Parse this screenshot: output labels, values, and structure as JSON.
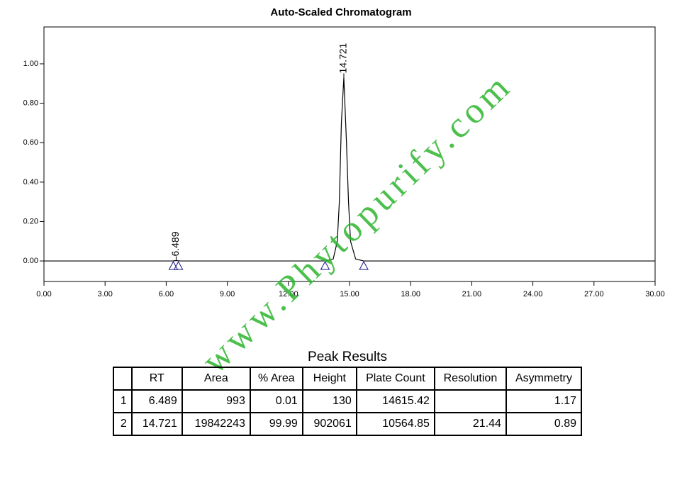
{
  "chart_data": {
    "type": "line",
    "title": "Auto-Scaled Chromatogram",
    "x": [
      0,
      6.3,
      6.489,
      6.7,
      13.8,
      14.2,
      14.4,
      14.5,
      14.6,
      14.721,
      14.85,
      14.95,
      15.05,
      15.3,
      15.7,
      30
    ],
    "series": [
      {
        "color": "#000000",
        "values": [
          0,
          0,
          0.002,
          0,
          0,
          0.01,
          0.1,
          0.3,
          0.7,
          0.93,
          0.6,
          0.3,
          0.1,
          0.01,
          0,
          0
        ]
      }
    ],
    "xlim": [
      0,
      30
    ],
    "ylim": [
      -0.104,
      1.187
    ],
    "xticks": [
      {
        "value": 0,
        "label": "0.00"
      },
      {
        "value": 3,
        "label": "3.00"
      },
      {
        "value": 6,
        "label": "6.00"
      },
      {
        "value": 9,
        "label": "9.00"
      },
      {
        "value": 12,
        "label": "12.00"
      },
      {
        "value": 15,
        "label": "15.00"
      },
      {
        "value": 18,
        "label": "18.00"
      },
      {
        "value": 21,
        "label": "21.00"
      },
      {
        "value": 24,
        "label": "24.00"
      },
      {
        "value": 27,
        "label": "27.00"
      },
      {
        "value": 30,
        "label": "30.00"
      }
    ],
    "yticks": [
      {
        "value": 0,
        "label": "0.00"
      },
      {
        "value": 0.2,
        "label": "0.20"
      },
      {
        "value": 0.4,
        "label": "0.40"
      },
      {
        "value": 0.6,
        "label": "0.60"
      },
      {
        "value": 0.8,
        "label": "0.80"
      },
      {
        "value": 1,
        "label": "1.00"
      }
    ],
    "annotations": [
      {
        "x": 6.489,
        "y": 0.002,
        "text": "6.489"
      },
      {
        "x": 14.721,
        "y": 0.93,
        "text": "14.721"
      }
    ],
    "peak_markers": {
      "color": "#1a1a8c",
      "x": [
        6.35,
        6.6,
        13.8,
        15.7
      ],
      "y": [
        0,
        0,
        0,
        0
      ]
    },
    "watermark": "www.Phytopurify.com"
  },
  "table": {
    "title": "Peak Results",
    "columns": [
      null,
      "RT",
      "Area",
      "% Area",
      "Height",
      "Plate Count",
      "Resolution",
      "Asymmetry"
    ],
    "rows": [
      [
        "1",
        "6.489",
        "993",
        "0.01",
        "130",
        "14615.42",
        null,
        "1.17"
      ],
      [
        "2",
        "14.721",
        "19842243",
        "99.99",
        "902061",
        "10564.85",
        "21.44",
        "0.89"
      ]
    ]
  }
}
